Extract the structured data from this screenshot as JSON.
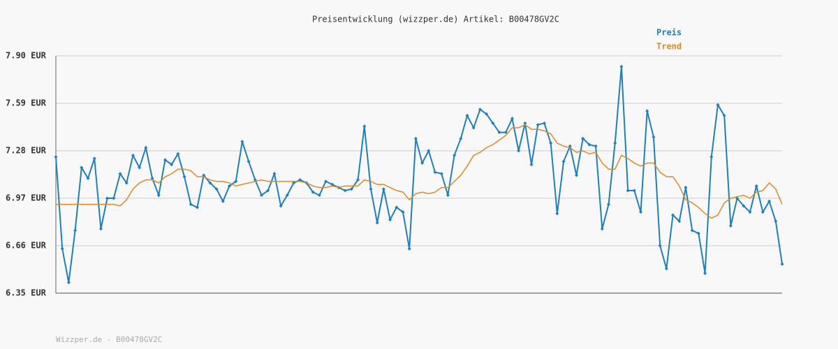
{
  "chart_data": {
    "type": "line",
    "title": "Preisentwicklung (wizzper.de) Artikel: B00478GV2C",
    "footer": "Wizzper.de - B00478GV2C",
    "ylim": [
      6.35,
      7.9
    ],
    "yticks": [
      {
        "value": 6.35,
        "label": "6.35 EUR"
      },
      {
        "value": 6.66,
        "label": "6.66 EUR"
      },
      {
        "value": 6.97,
        "label": "6.97 EUR"
      },
      {
        "value": 7.28,
        "label": "7.28 EUR"
      },
      {
        "value": 7.59,
        "label": "7.59 EUR"
      },
      {
        "value": 7.9,
        "label": "7.90 EUR"
      }
    ],
    "grid": true,
    "series": [
      {
        "name": "Preis",
        "color": "#1a80c0",
        "markers": true,
        "values": [
          7.24,
          6.64,
          6.42,
          6.76,
          7.17,
          7.1,
          7.23,
          6.77,
          6.97,
          6.97,
          7.13,
          7.07,
          7.25,
          7.17,
          7.3,
          7.1,
          6.99,
          7.22,
          7.19,
          7.26,
          7.11,
          6.93,
          6.91,
          7.12,
          7.07,
          7.03,
          6.95,
          7.05,
          7.08,
          7.34,
          7.21,
          7.09,
          6.99,
          7.02,
          7.13,
          6.92,
          6.99,
          7.07,
          7.09,
          7.07,
          7.01,
          6.99,
          7.08,
          7.06,
          7.04,
          7.02,
          7.03,
          7.09,
          7.44,
          7.03,
          6.81,
          7.03,
          6.83,
          6.91,
          6.88,
          6.64,
          7.36,
          7.2,
          7.28,
          7.14,
          7.13,
          6.99,
          7.25,
          7.36,
          7.51,
          7.43,
          7.55,
          7.52,
          7.46,
          7.4,
          7.4,
          7.49,
          7.28,
          7.46,
          7.19,
          7.45,
          7.46,
          7.33,
          6.87,
          7.21,
          7.31,
          7.12,
          7.36,
          7.32,
          7.31,
          6.77,
          6.93,
          7.33,
          7.83,
          7.02,
          7.02,
          6.88,
          7.54,
          7.37,
          6.66,
          6.51,
          6.86,
          6.82,
          7.04,
          6.76,
          6.74,
          6.48,
          7.24,
          7.58,
          7.51,
          6.79,
          6.97,
          6.92,
          6.88,
          7.05,
          6.88,
          6.95,
          6.82,
          6.54
        ]
      },
      {
        "name": "Trend",
        "color": "#e08a20",
        "markers": false,
        "values": [
          6.93,
          6.93,
          6.93,
          6.93,
          6.93,
          6.93,
          6.93,
          6.93,
          6.93,
          6.93,
          6.92,
          6.96,
          7.03,
          7.07,
          7.09,
          7.09,
          7.07,
          7.11,
          7.13,
          7.16,
          7.16,
          7.15,
          7.11,
          7.11,
          7.09,
          7.08,
          7.08,
          7.07,
          7.05,
          7.06,
          7.07,
          7.08,
          7.09,
          7.08,
          7.08,
          7.08,
          7.08,
          7.08,
          7.08,
          7.07,
          7.05,
          7.04,
          7.04,
          7.05,
          7.04,
          7.05,
          7.05,
          7.05,
          7.09,
          7.08,
          7.06,
          7.06,
          7.04,
          7.02,
          7.01,
          6.96,
          7.0,
          7.01,
          7.0,
          7.01,
          7.04,
          7.04,
          7.08,
          7.12,
          7.18,
          7.25,
          7.27,
          7.3,
          7.32,
          7.35,
          7.38,
          7.43,
          7.43,
          7.45,
          7.42,
          7.42,
          7.41,
          7.39,
          7.33,
          7.31,
          7.3,
          7.27,
          7.28,
          7.26,
          7.27,
          7.2,
          7.16,
          7.16,
          7.25,
          7.23,
          7.2,
          7.18,
          7.2,
          7.2,
          7.14,
          7.11,
          7.11,
          7.05,
          6.96,
          6.94,
          6.91,
          6.87,
          6.84,
          6.86,
          6.94,
          6.97,
          6.98,
          6.99,
          6.97,
          7.01,
          7.02,
          7.07,
          7.03,
          6.93
        ]
      }
    ]
  }
}
